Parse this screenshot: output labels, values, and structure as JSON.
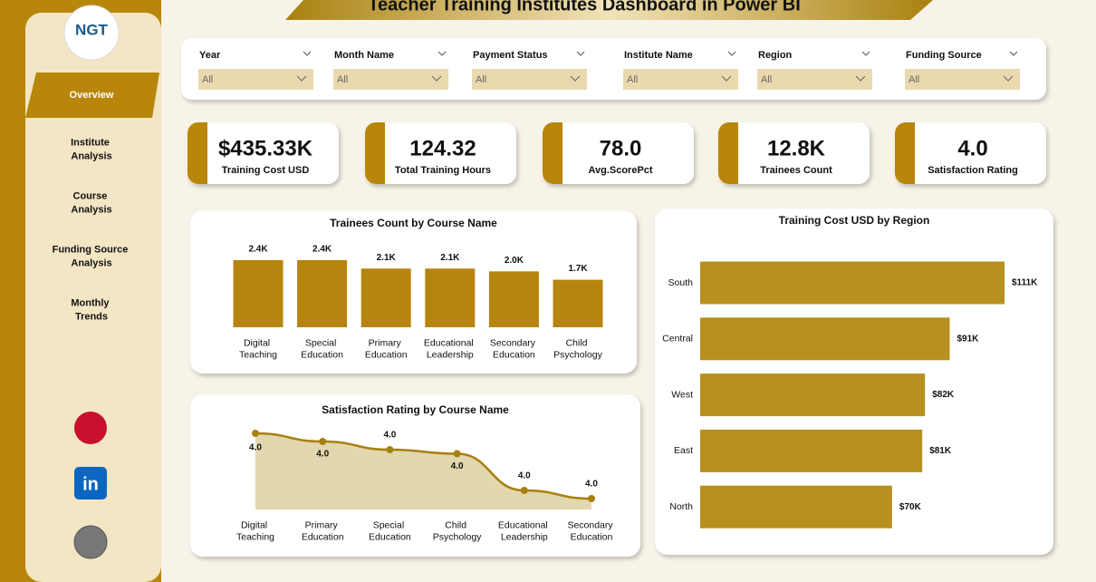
{
  "title": "Teacher Training Institutes Dashboard in Power BI",
  "logo": "NGT",
  "nav": [
    "Overview",
    "Institute Analysis",
    "Course Analysis",
    "Funding Source Analysis",
    "Monthly Trends"
  ],
  "filters": [
    {
      "label": "Year",
      "value": "All"
    },
    {
      "label": "Month Name",
      "value": "All"
    },
    {
      "label": "Payment Status",
      "value": "All"
    },
    {
      "label": "Institute Name",
      "value": "All"
    },
    {
      "label": "Region",
      "value": "All"
    },
    {
      "label": "Funding Source",
      "value": "All"
    }
  ],
  "kpis": [
    {
      "value": "$435.33K",
      "label": "Training Cost USD"
    },
    {
      "value": "124.32",
      "label": "Total Training Hours"
    },
    {
      "value": "78.0",
      "label": "Avg.ScorePct"
    },
    {
      "value": "12.8K",
      "label": "Trainees Count"
    },
    {
      "value": "4.0",
      "label": "Satisfaction Rating"
    }
  ],
  "chart_data": [
    {
      "type": "bar",
      "title": "Trainees Count by Course Name",
      "categories": [
        "Digital Teaching",
        "Special Education",
        "Primary Education",
        "Educational Leadership",
        "Secondary Education",
        "Child Psychology"
      ],
      "values": [
        2400,
        2400,
        2100,
        2100,
        2000,
        1700
      ],
      "value_labels": [
        "2.4K",
        "2.4K",
        "2.1K",
        "2.1K",
        "2.0K",
        "1.7K"
      ],
      "color": "#b5850f"
    },
    {
      "type": "area",
      "title": "Satisfaction Rating by Course Name",
      "categories": [
        "Digital Teaching",
        "Primary Education",
        "Special Education",
        "Child Psychology",
        "Educational Leadership",
        "Secondary Education"
      ],
      "values": [
        4.04,
        4.03,
        4.02,
        4.015,
        3.97,
        3.96
      ],
      "value_labels": [
        "4.0",
        "4.0",
        "4.0",
        "4.0",
        "4.0",
        "4.0"
      ],
      "color": "#a88010"
    },
    {
      "type": "hbar",
      "title": "Training Cost USD by Region",
      "categories": [
        "South",
        "Central",
        "West",
        "East",
        "North"
      ],
      "values": [
        111000,
        91000,
        82000,
        81000,
        70000
      ],
      "value_labels": [
        "$111K",
        "$91K",
        "$82K",
        "$81K",
        "$70K"
      ],
      "color": "#b8901f"
    }
  ]
}
